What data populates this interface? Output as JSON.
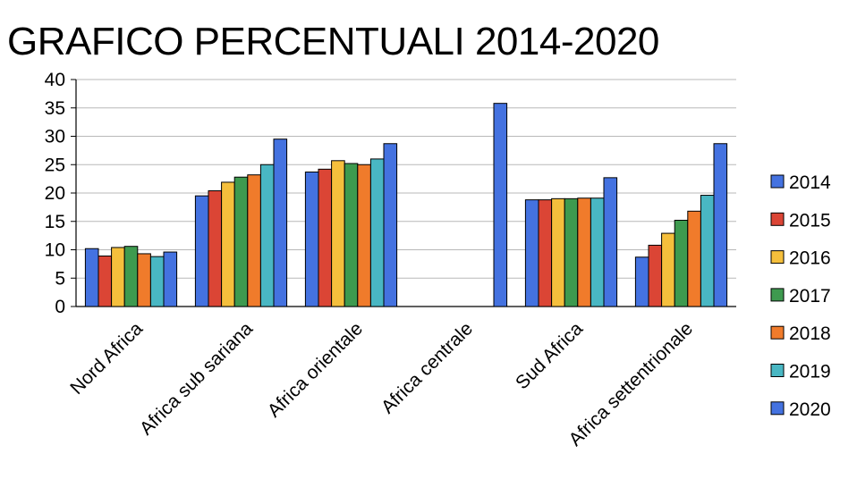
{
  "chart_data": {
    "type": "bar",
    "title": "GRAFICO PERCENTUALI 2014-2020",
    "xlabel": "",
    "ylabel": "",
    "ylim": [
      0,
      40
    ],
    "yticks": [
      0,
      5,
      10,
      15,
      20,
      25,
      30,
      35,
      40
    ],
    "grid": true,
    "legend_position": "right",
    "categories": [
      "Nord Africa",
      "Africa sub sariana",
      "Africa orientale",
      "Africa centrale",
      "Sud Africa",
      "Africa settentrionale"
    ],
    "series": [
      {
        "name": "2014",
        "color": "#4472E0",
        "values": [
          10.2,
          19.5,
          23.7,
          null,
          18.8,
          8.7
        ]
      },
      {
        "name": "2015",
        "color": "#DB4535",
        "values": [
          8.9,
          20.4,
          24.2,
          null,
          18.8,
          10.8
        ]
      },
      {
        "name": "2016",
        "color": "#F5BF3C",
        "values": [
          10.4,
          21.9,
          25.7,
          null,
          19.0,
          12.9
        ]
      },
      {
        "name": "2017",
        "color": "#3E9A4F",
        "values": [
          10.6,
          22.8,
          25.2,
          null,
          19.0,
          15.2
        ]
      },
      {
        "name": "2018",
        "color": "#F07B2B",
        "values": [
          9.3,
          23.2,
          25.0,
          null,
          19.1,
          16.8
        ]
      },
      {
        "name": "2019",
        "color": "#49B7C3",
        "values": [
          8.8,
          25.0,
          26.0,
          null,
          19.1,
          19.6
        ]
      },
      {
        "name": "2020",
        "color": "#4472E0",
        "values": [
          9.6,
          29.5,
          28.7,
          35.8,
          22.7,
          28.7
        ]
      }
    ]
  }
}
